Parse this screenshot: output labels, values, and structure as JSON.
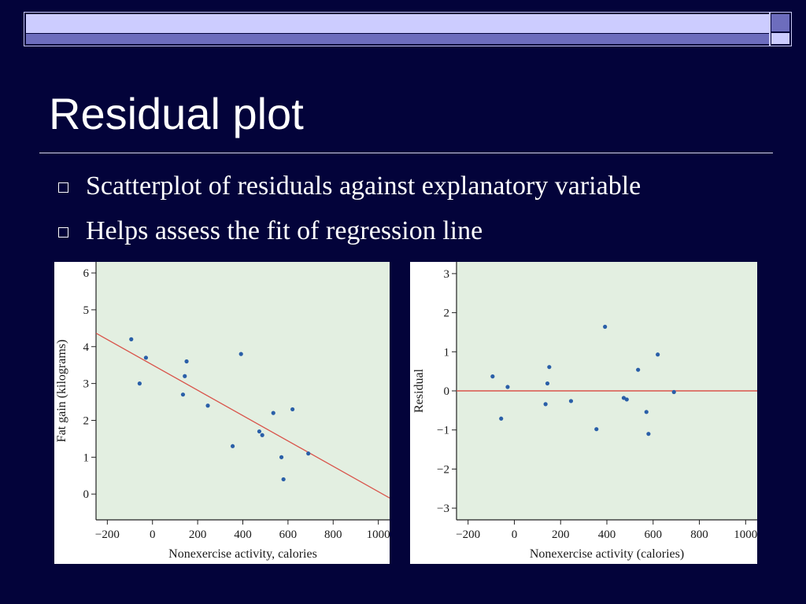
{
  "slide": {
    "title": "Residual plot",
    "bullets": [
      "Scatterplot of residuals against explanatory variable",
      "Helps assess the fit of regression line"
    ],
    "colors": {
      "background": "#03033a",
      "plot_area": "#e3efe1",
      "points": "#2a5fa8",
      "line": "#d9534a",
      "header_bar_light": "#ccccff",
      "header_bar_mid": "#6d6dbd"
    }
  },
  "chart_data": [
    {
      "type": "scatter",
      "xlabel": "Nonexercise activity, calories",
      "ylabel": "Fat gain (kilograms)",
      "xlim": [
        -250,
        1050
      ],
      "ylim": [
        -0.7,
        6.3
      ],
      "xticks": [
        -200,
        0,
        200,
        400,
        600,
        800,
        1000
      ],
      "yticks": [
        0,
        1,
        2,
        3,
        4,
        5,
        6
      ],
      "grid": false,
      "points": [
        {
          "x": -94,
          "y": 4.2
        },
        {
          "x": -57,
          "y": 3.0
        },
        {
          "x": -29,
          "y": 3.7
        },
        {
          "x": 135,
          "y": 2.7
        },
        {
          "x": 143,
          "y": 3.2
        },
        {
          "x": 151,
          "y": 3.6
        },
        {
          "x": 245,
          "y": 2.4
        },
        {
          "x": 355,
          "y": 1.3
        },
        {
          "x": 392,
          "y": 3.8
        },
        {
          "x": 473,
          "y": 1.7
        },
        {
          "x": 486,
          "y": 1.6
        },
        {
          "x": 535,
          "y": 2.2
        },
        {
          "x": 571,
          "y": 1.0
        },
        {
          "x": 580,
          "y": 0.4
        },
        {
          "x": 620,
          "y": 2.3
        },
        {
          "x": 690,
          "y": 1.1
        }
      ],
      "regression_line": {
        "intercept": 3.505,
        "slope": -0.00344
      }
    },
    {
      "type": "scatter",
      "xlabel": "Nonexercise activity (calories)",
      "ylabel": "Residual",
      "xlim": [
        -250,
        1050
      ],
      "ylim": [
        -3.3,
        3.3
      ],
      "xticks": [
        -200,
        0,
        200,
        400,
        600,
        800,
        1000
      ],
      "yticks": [
        -3,
        -2,
        -1,
        0,
        1,
        2,
        3
      ],
      "grid": false,
      "points": [
        {
          "x": -94,
          "y": 0.37
        },
        {
          "x": -57,
          "y": -0.71
        },
        {
          "x": -29,
          "y": 0.1
        },
        {
          "x": 135,
          "y": -0.34
        },
        {
          "x": 143,
          "y": 0.19
        },
        {
          "x": 151,
          "y": 0.61
        },
        {
          "x": 245,
          "y": -0.26
        },
        {
          "x": 355,
          "y": -0.98
        },
        {
          "x": 392,
          "y": 1.64
        },
        {
          "x": 473,
          "y": -0.18
        },
        {
          "x": 486,
          "y": -0.22
        },
        {
          "x": 535,
          "y": 0.54
        },
        {
          "x": 571,
          "y": -0.54
        },
        {
          "x": 580,
          "y": -1.1
        },
        {
          "x": 620,
          "y": 0.93
        },
        {
          "x": 690,
          "y": -0.03
        }
      ],
      "reference_line": {
        "y": 0
      }
    }
  ]
}
